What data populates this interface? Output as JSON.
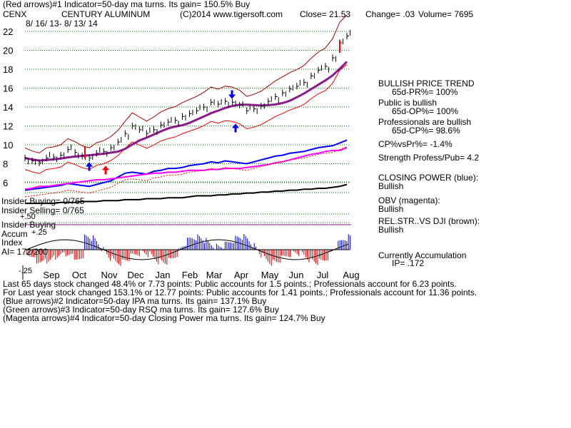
{
  "header": {
    "line1": "(Red arrows)#1 Indicator=50-day ma turns.  Its gain= 150.5% Buy",
    "symbol": "CENX",
    "company": "CENTURY ALUMINUM",
    "copyright": "(C)2014 www.tigersoft.com",
    "close": "Close=  21.53",
    "change": "Change= .03",
    "volume": "Volume= 7695",
    "date_range": "8/ 16/ 13- 8/ 13/ 14"
  },
  "panel_labels": {
    "insider_buying": "Insider Buying= 0/765",
    "insider_selling": "Insider Selling= 0/765",
    "insider_buying2": "Insider Buying",
    "accum": "Accum",
    "index": "Index",
    "ai": "AI= 172/200",
    "plus50": "+.50",
    "plus25": "+.25",
    "minus25": "-.25"
  },
  "right_panel": {
    "trend_title": "BULLISH PRICE TREND",
    "trend_value": "65d-PR%= 100%",
    "public_title": "Public is bullish",
    "public_value": "65d-OP%= 100%",
    "pro_title": "Professionals are bullish",
    "pro_value": "65d-CP%= 98.6%",
    "cpvspr": "CP%vsPr%= -1.4%",
    "strength": "Strength Profess/Pub= 4.2",
    "closing_power_title": "CLOSING POWER (blue):",
    "closing_power_value": "Bullish",
    "obv_title": "OBV (magenta):",
    "obv_value": "Bullish",
    "relstr_title": "REL.STR..VS DJI (brown):",
    "relstr_value": "Bullish",
    "accum_title": "Currently Accumulation",
    "accum_value": "IP=  .172"
  },
  "footer": {
    "line1": "Last 65 days stock changed  48.4% or  7.73 points:  Public accounts for  1.5 points.;  Professionals account for  6.23 points.",
    "line2": "For Last year stock changed  153.1% or  12.77 points:  Public accounts for  1.41 points.;  Professionals account for  11.36 points.",
    "line3": "(Blue arrows)#2 Indicator=50-day IPA ma turns.  Its gain= 137.1% Buy",
    "line4": "(Green arrows)#3 Indicator=50-day RSQ ma turns.  Its gain= 127.6% Buy",
    "line5": "(Magenta arrows)#4 Indicator=50-day Closing Power ma turns.  Its gain= 124.7% Buy"
  },
  "chart_data": {
    "type": "line",
    "y_ticks": [
      22,
      20,
      18,
      16,
      14,
      12,
      10,
      8,
      6
    ],
    "ylim": [
      5,
      22.5
    ],
    "months": [
      "Sep",
      "Oct",
      "Nov",
      "Dec",
      "Jan",
      "Feb",
      "Mar",
      "Apr",
      "May",
      "Jun",
      "Jul",
      "Aug"
    ],
    "series": [
      {
        "values": [
          8.6,
          8.3,
          8.1,
          8.6,
          8.7,
          8.9,
          9.5,
          9.2,
          8.8,
          8.6,
          9.1,
          9.3,
          9.7,
          10.3,
          11.2,
          12.0,
          11.6,
          11.2,
          11.6,
          12.1,
          12.4,
          12.6,
          13.0,
          13.3,
          13.6,
          14.0,
          14.5,
          14.3,
          14.6,
          14.5,
          14.2,
          13.6,
          13.8,
          14.1,
          14.6,
          15.1,
          15.5,
          15.9,
          16.2,
          16.6,
          17.3,
          17.9,
          18.3,
          19.2,
          20.8,
          21.5
        ]
      },
      {
        "values": [
          5.2,
          5.3,
          5.4,
          5.5,
          5.6,
          5.7,
          5.9,
          5.8,
          5.7,
          5.6,
          5.8,
          6.0,
          6.2,
          6.6,
          7.0,
          7.1,
          7.0,
          6.9,
          7.2,
          7.3,
          7.5,
          7.5,
          7.6,
          7.8,
          7.9,
          8.0,
          8.2,
          8.1,
          8.3,
          8.2,
          8.1,
          8.0,
          8.2,
          8.4,
          8.6,
          8.8,
          8.9,
          9.1,
          9.2,
          9.3,
          9.5,
          9.7,
          9.8,
          9.9,
          10.2,
          10.5
        ]
      },
      {
        "values": [
          6.5,
          6.6,
          6.8,
          6.8,
          6.9,
          7.0,
          7.1,
          7.2,
          7.3,
          7.4,
          7.5,
          7.5,
          7.6,
          7.7,
          7.8,
          7.9,
          8.0,
          8.1,
          8.2,
          8.2,
          8.3,
          8.3,
          8.4,
          8.5,
          8.5,
          8.5,
          8.6,
          8.6,
          8.7,
          8.7,
          8.7,
          8.8,
          8.9,
          9.0,
          9.1,
          9.3,
          9.4,
          9.6,
          9.8,
          10.0,
          10.2,
          10.3,
          10.5,
          10.6,
          10.6,
          10.9
        ]
      },
      {
        "values": [
          5.2,
          5.2,
          5.2,
          5.2,
          5.2,
          5.3,
          5.3,
          5.3,
          5.4,
          5.4,
          5.4,
          5.5,
          5.5,
          5.5,
          5.6,
          5.6,
          5.6,
          5.7,
          5.7,
          5.7,
          5.8,
          5.8,
          5.8,
          5.9,
          6.0,
          6.0,
          6.0,
          6.1,
          6.1,
          6.2,
          6.2,
          6.3,
          6.3,
          6.4,
          6.4,
          6.5,
          6.5,
          6.6,
          6.6,
          6.7,
          6.7,
          6.8,
          6.8,
          6.9,
          7.0,
          7.2
        ]
      }
    ]
  }
}
